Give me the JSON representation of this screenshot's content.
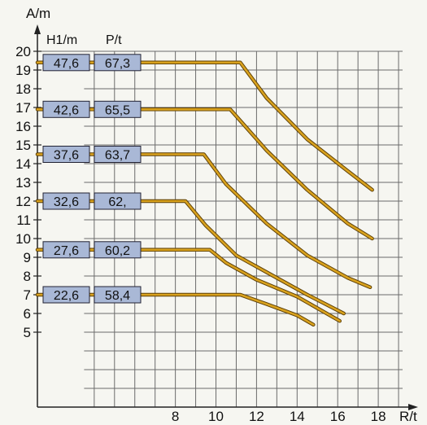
{
  "chart_data": {
    "type": "line",
    "ylabel": "A/m",
    "xlabel": "R/t",
    "col_headers": [
      "H1/m",
      "P/t"
    ],
    "yticks": [
      5,
      6,
      7,
      8,
      9,
      10,
      11,
      12,
      13,
      14,
      15,
      16,
      17,
      18,
      19,
      20
    ],
    "xticks": [
      8,
      10,
      12,
      14,
      16,
      18
    ],
    "ylim": [
      1,
      20
    ],
    "xlim": [
      1.2,
      19.6
    ],
    "grid": true,
    "colors": {
      "line": "#d9a21e",
      "box": "#a9b8d6",
      "grid": "#6b6b6b"
    },
    "series": [
      {
        "h1": "47,6",
        "p": "67,3",
        "y": 19.4,
        "points": [
          [
            11.2,
            19.4
          ],
          [
            12.5,
            17.5
          ],
          [
            14.5,
            15.3
          ],
          [
            16.5,
            13.6
          ],
          [
            17.7,
            12.6
          ]
        ]
      },
      {
        "h1": "42,6",
        "p": "65,5",
        "y": 16.9,
        "points": [
          [
            10.7,
            16.9
          ],
          [
            12.5,
            14.7
          ],
          [
            14.5,
            12.6
          ],
          [
            16.5,
            10.8
          ],
          [
            17.7,
            10.0
          ]
        ]
      },
      {
        "h1": "37,6",
        "p": "63,7",
        "y": 14.5,
        "points": [
          [
            9.4,
            14.5
          ],
          [
            10.5,
            12.9
          ],
          [
            12.5,
            10.8
          ],
          [
            14.5,
            9.1
          ],
          [
            16.5,
            7.9
          ],
          [
            17.6,
            7.4
          ]
        ]
      },
      {
        "h1": "32,6",
        "p": "62,",
        "y": 12.0,
        "points": [
          [
            8.5,
            12.0
          ],
          [
            9.5,
            10.7
          ],
          [
            11.0,
            9.1
          ],
          [
            12.5,
            8.2
          ],
          [
            14.5,
            7.0
          ],
          [
            16.3,
            6.0
          ]
        ]
      },
      {
        "h1": "27,6",
        "p": "60,2",
        "y": 9.4,
        "points": [
          [
            9.7,
            9.4
          ],
          [
            10.5,
            8.7
          ],
          [
            12.0,
            7.8
          ],
          [
            14.0,
            6.9
          ],
          [
            16.1,
            5.6
          ]
        ]
      },
      {
        "h1": "22,6",
        "p": "58,4",
        "y": 7.0,
        "points": [
          [
            11.2,
            7.0
          ],
          [
            12.5,
            6.5
          ],
          [
            14.0,
            5.9
          ],
          [
            14.8,
            5.4
          ]
        ]
      }
    ]
  }
}
